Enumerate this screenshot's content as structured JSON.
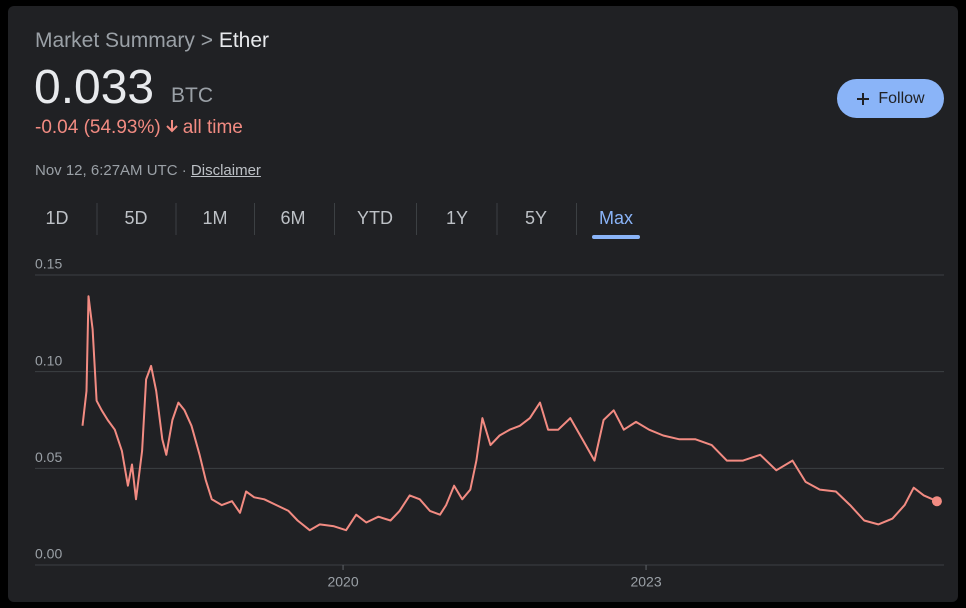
{
  "header": {
    "breadcrumb": {
      "parent": "Market Summary",
      "separator": ">",
      "current": "Ether"
    },
    "price": "0.033",
    "unit": "BTC",
    "change": "-0.04 (54.93%)",
    "period": "all time",
    "timestamp": "Nov 12, 6:27AM UTC",
    "dot": "·",
    "disclaimer": "Disclaimer",
    "follow": "Follow"
  },
  "tabs": [
    "1D",
    "5D",
    "1M",
    "6M",
    "YTD",
    "1Y",
    "5Y",
    "Max"
  ],
  "selected_tab": 7,
  "chart_data": {
    "type": "line",
    "color": "#f28b82",
    "x": [
      2017.42,
      2017.46,
      2017.48,
      2017.52,
      2017.56,
      2017.61,
      2017.67,
      2017.74,
      2017.81,
      2017.87,
      2017.91,
      2017.95,
      2018.01,
      2018.05,
      2018.1,
      2018.15,
      2018.21,
      2018.25,
      2018.31,
      2018.37,
      2018.43,
      2018.5,
      2018.58,
      2018.64,
      2018.7,
      2018.8,
      2018.9,
      2018.98,
      2019.04,
      2019.12,
      2019.22,
      2019.34,
      2019.46,
      2019.55,
      2019.67,
      2019.77,
      2019.91,
      2020.03,
      2020.13,
      2020.23,
      2020.35,
      2020.47,
      2020.56,
      2020.66,
      2020.76,
      2020.86,
      2020.96,
      2021.02,
      2021.1,
      2021.18,
      2021.26,
      2021.32,
      2021.38,
      2021.46,
      2021.55,
      2021.65,
      2021.75,
      2021.85,
      2021.95,
      2022.03,
      2022.13,
      2022.25,
      2022.37,
      2022.49,
      2022.58,
      2022.68,
      2022.78,
      2022.9,
      2023.03,
      2023.17,
      2023.33,
      2023.49,
      2023.65,
      2023.8,
      2023.96,
      2024.13,
      2024.29,
      2024.45,
      2024.58,
      2024.72,
      2024.88,
      2025.02,
      2025.16,
      2025.3,
      2025.44,
      2025.56,
      2025.65,
      2025.75,
      2025.88
    ],
    "values": [
      0.072,
      0.09,
      0.139,
      0.122,
      0.085,
      0.08,
      0.075,
      0.07,
      0.059,
      0.041,
      0.052,
      0.034,
      0.059,
      0.096,
      0.103,
      0.09,
      0.065,
      0.057,
      0.075,
      0.084,
      0.08,
      0.072,
      0.057,
      0.044,
      0.034,
      0.031,
      0.033,
      0.027,
      0.038,
      0.035,
      0.034,
      0.031,
      0.028,
      0.023,
      0.018,
      0.021,
      0.02,
      0.018,
      0.026,
      0.022,
      0.025,
      0.023,
      0.028,
      0.036,
      0.034,
      0.028,
      0.026,
      0.031,
      0.041,
      0.034,
      0.039,
      0.054,
      0.076,
      0.062,
      0.067,
      0.07,
      0.072,
      0.076,
      0.084,
      0.07,
      0.07,
      0.076,
      0.065,
      0.054,
      0.075,
      0.08,
      0.07,
      0.074,
      0.07,
      0.067,
      0.065,
      0.065,
      0.062,
      0.054,
      0.054,
      0.057,
      0.049,
      0.054,
      0.043,
      0.039,
      0.038,
      0.031,
      0.023,
      0.021,
      0.024,
      0.031,
      0.04,
      0.036,
      0.033
    ],
    "xlim": [
      2016.95,
      2025.95
    ],
    "xticks": [
      2020,
      2023
    ],
    "ylim": [
      0,
      0.15
    ],
    "yticks": [
      {
        "value": 0,
        "label": "0.00"
      },
      {
        "value": 0.05,
        "label": "0.05"
      },
      {
        "value": 0.1,
        "label": "0.10"
      },
      {
        "value": 0.15,
        "label": "0.15"
      }
    ],
    "grid": true
  }
}
